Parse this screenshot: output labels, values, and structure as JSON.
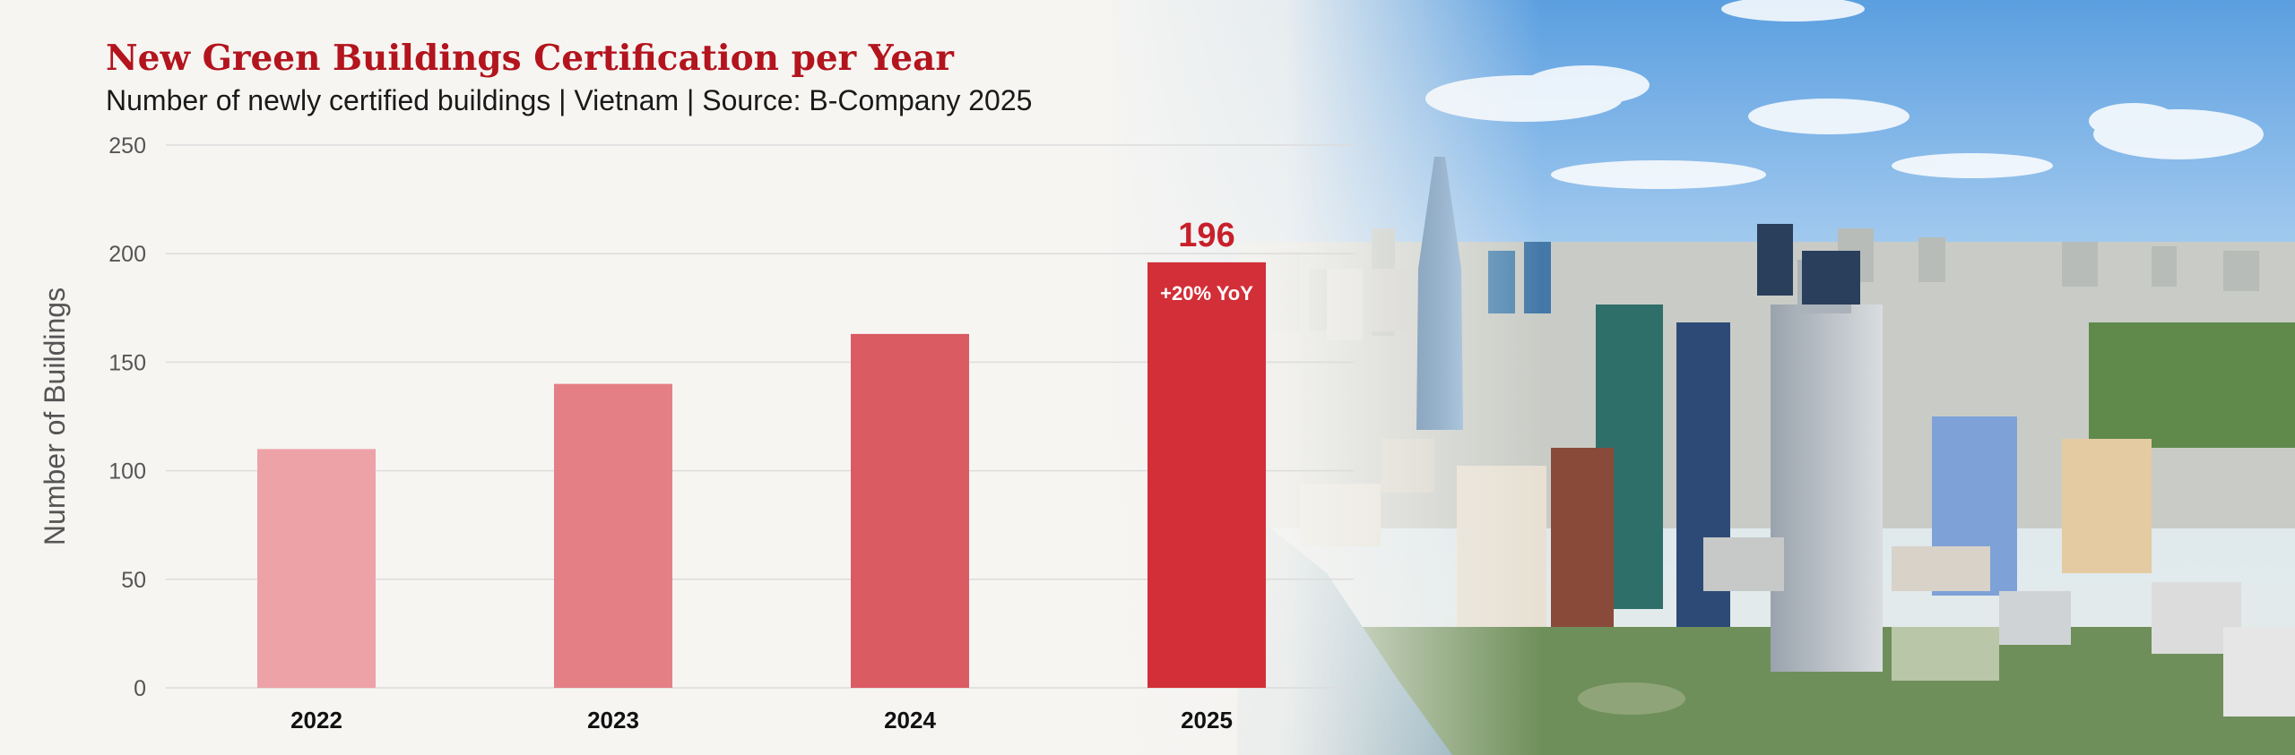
{
  "chart_data": {
    "type": "bar",
    "title": "New Green Buildings Certification per Year",
    "subtitle": "Number of newly certified buildings | Vietnam | Source: B-Company 2025",
    "xlabel": "",
    "ylabel": "Number of Buildings",
    "categories": [
      "2022",
      "2023",
      "2024",
      "2025"
    ],
    "values": [
      110,
      140,
      163,
      196
    ],
    "bar_colors": [
      "#eda2a7",
      "#e57f86",
      "#db5b62",
      "#d22f38"
    ],
    "ylim": [
      0,
      250
    ],
    "yticks": [
      0,
      50,
      100,
      150,
      200,
      250
    ],
    "grid": true,
    "data_labels": [
      {
        "category": "2025",
        "text": "196"
      }
    ],
    "annotations": [
      {
        "category": "2025",
        "text": "+20% YoY"
      }
    ],
    "background": "city skyline photo"
  }
}
